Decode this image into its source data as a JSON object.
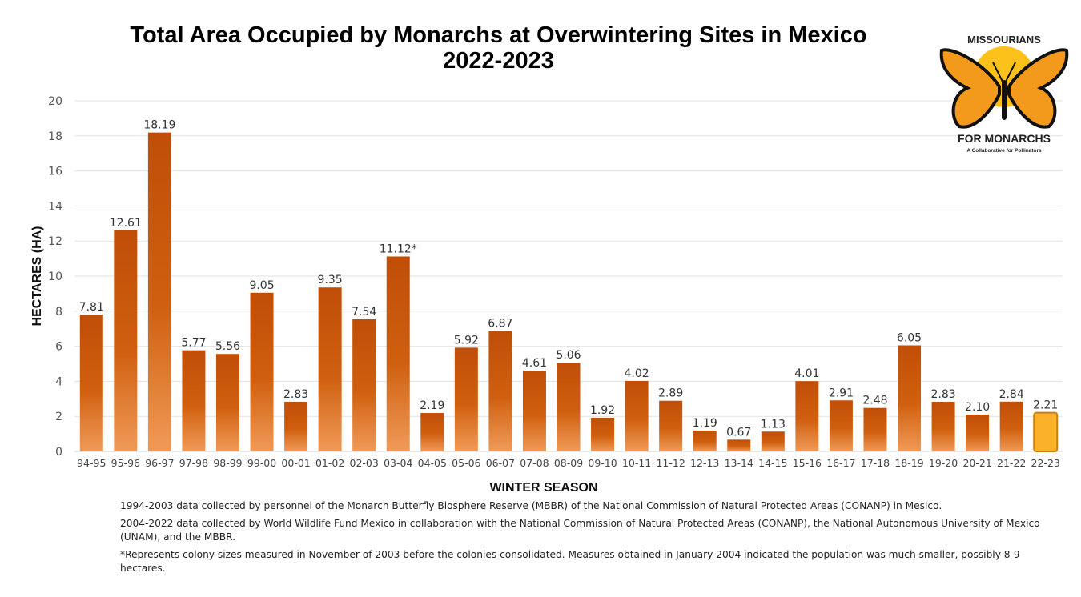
{
  "chart_data": {
    "type": "bar",
    "title": "Total Area Occupied by Monarchs at Overwintering Sites in Mexico",
    "subtitle": "2022-2023",
    "xlabel": "WINTER SEASON",
    "ylabel": "HECTARES (HA)",
    "ylim": [
      0,
      20
    ],
    "yticks": [
      0,
      2,
      4,
      6,
      8,
      10,
      12,
      14,
      16,
      18,
      20
    ],
    "grid": true,
    "categories": [
      "94-95",
      "95-96",
      "96-97",
      "97-98",
      "98-99",
      "99-00",
      "00-01",
      "01-02",
      "02-03",
      "03-04",
      "04-05",
      "05-06",
      "06-07",
      "07-08",
      "08-09",
      "09-10",
      "10-11",
      "11-12",
      "12-13",
      "13-14",
      "14-15",
      "15-16",
      "16-17",
      "17-18",
      "18-19",
      "19-20",
      "20-21",
      "21-22",
      "22-23"
    ],
    "values": [
      7.81,
      12.61,
      18.19,
      5.77,
      5.56,
      9.05,
      2.83,
      9.35,
      7.54,
      11.12,
      2.19,
      5.92,
      6.87,
      4.61,
      5.06,
      1.92,
      4.02,
      2.89,
      1.19,
      0.67,
      1.13,
      4.01,
      2.91,
      2.48,
      6.05,
      2.83,
      2.1,
      2.84,
      2.21
    ],
    "data_labels": [
      "7.81",
      "12.61",
      "18.19",
      "5.77",
      "5.56",
      "9.05",
      "2.83",
      "9.35",
      "7.54",
      "11.12*",
      "2.19",
      "5.92",
      "6.87",
      "4.61",
      "5.06",
      "1.92",
      "4.02",
      "2.89",
      "1.19",
      "0.67",
      "1.13",
      "4.01",
      "2.91",
      "2.48",
      "6.05",
      "2.83",
      "2.10",
      "2.84",
      "2.21"
    ],
    "colors": {
      "bar_top": "#c04e08",
      "bar_bottom": "#f09a58",
      "highlight_fill": "#fbb22a",
      "highlight_border": "#c98012",
      "grid": "#e2e2e2"
    },
    "highlight_index": 28
  },
  "notes": [
    "1994-2003 data collected by personnel of the Monarch Butterfly Biosphere Reserve (MBBR) of the National Commission of Natural Protected Areas (CONANP) in Mesico.",
    "2004-2022 data collected by World Wildlife Fund Mexico in collaboration with the National Commission of Natural Protected Areas (CONANP), the National Autonomous University of Mexico (UNAM), and the MBBR.",
    "*Represents colony sizes measured in November of 2003 before the colonies consolidated.  Measures obtained in January 2004 indicated the population was much smaller, possibly 8-9 hectares."
  ],
  "logo": {
    "top_text": "MISSOURIANS",
    "main_text": "FOR MONARCHS",
    "tagline": "A Collaborative for Pollinators",
    "icon": "monarch-butterfly-logo"
  }
}
